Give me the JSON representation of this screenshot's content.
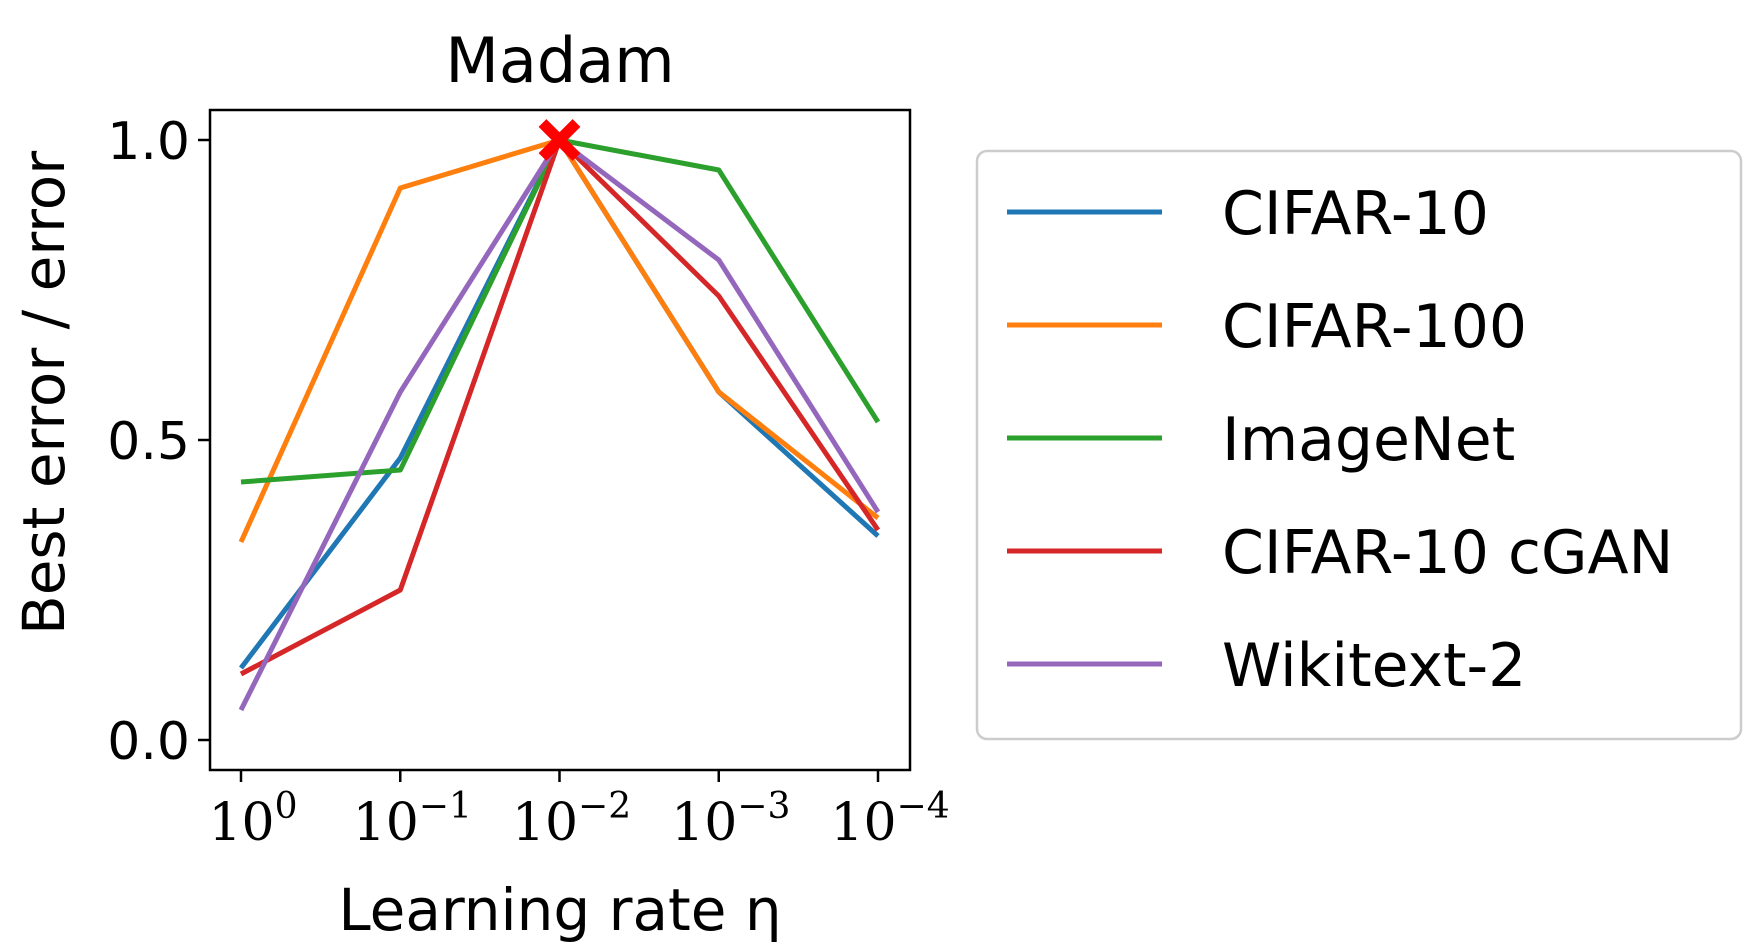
{
  "chart_data": {
    "type": "line",
    "title": "Madam",
    "xlabel": "Learning rate η",
    "ylabel": "Best error / error",
    "x": [
      "1e0",
      "1e-1",
      "1e-2",
      "1e-3",
      "1e-4"
    ],
    "x_ticks": [
      {
        "base": "10",
        "exp": "0"
      },
      {
        "base": "10",
        "exp": "−1"
      },
      {
        "base": "10",
        "exp": "−2"
      },
      {
        "base": "10",
        "exp": "−3"
      },
      {
        "base": "10",
        "exp": "−4"
      }
    ],
    "y_ticks": [
      "0.0",
      "0.5",
      "1.0"
    ],
    "ylim": [
      -0.05,
      1.05
    ],
    "grid": false,
    "legend_position": "right",
    "series": [
      {
        "name": "CIFAR-10",
        "color": "#1f77b4",
        "values": [
          0.12,
          0.47,
          1.0,
          0.58,
          0.34
        ]
      },
      {
        "name": "CIFAR-100",
        "color": "#ff7f0e",
        "values": [
          0.33,
          0.92,
          1.0,
          0.58,
          0.37
        ]
      },
      {
        "name": "ImageNet",
        "color": "#2ca02c",
        "values": [
          0.43,
          0.45,
          1.0,
          0.95,
          0.53
        ]
      },
      {
        "name": "CIFAR-10 cGAN",
        "color": "#d62728",
        "values": [
          0.11,
          0.25,
          1.0,
          0.74,
          0.35
        ]
      },
      {
        "name": "Wikitext-2",
        "color": "#9467bd",
        "values": [
          0.05,
          0.58,
          1.0,
          0.8,
          0.38
        ]
      }
    ],
    "best_marker": {
      "x": "1e-2",
      "y": 1.0,
      "symbol": "x",
      "color": "#ff0000"
    }
  }
}
